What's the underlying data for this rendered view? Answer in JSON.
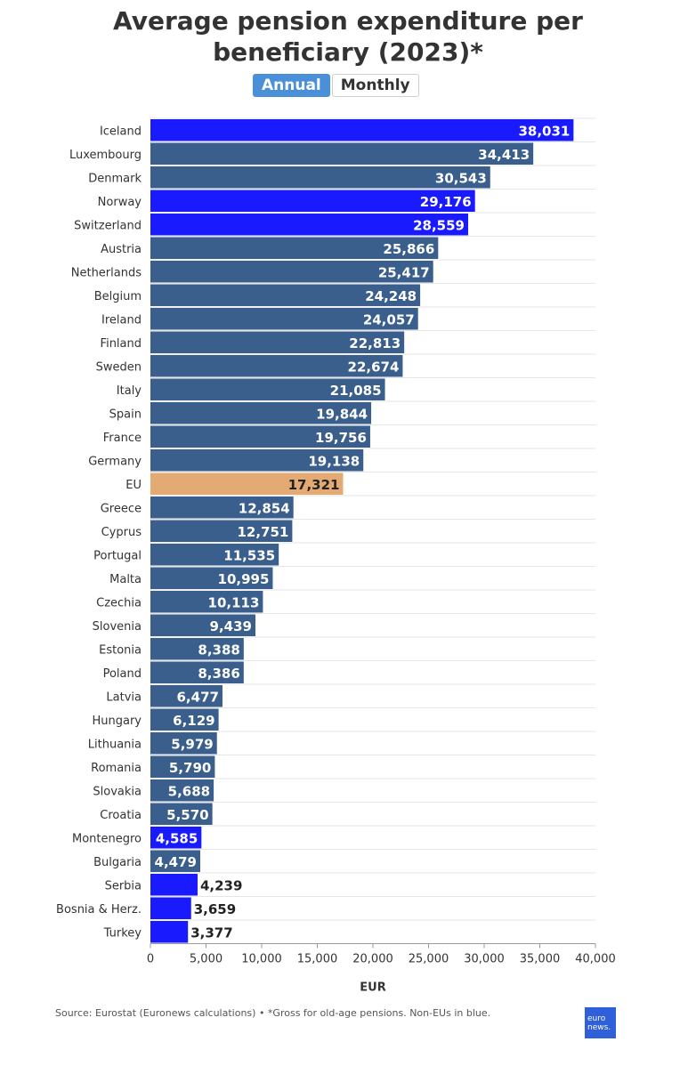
{
  "header": {
    "title_line1": "Average pension expenditure per",
    "title_line2": "beneficiary (2023)*"
  },
  "toggle": {
    "options": [
      "Annual",
      "Monthly"
    ],
    "selected": "Annual"
  },
  "colors": {
    "eu_member": "#3a5f8c",
    "non_eu": "#1a1aff",
    "eu_average": "#e3ab73",
    "grid": "#e6e6e6"
  },
  "chart_data": {
    "type": "bar",
    "orientation": "horizontal",
    "xlabel": "EUR",
    "xlim": [
      0,
      40000
    ],
    "xticks": [
      0,
      5000,
      10000,
      15000,
      20000,
      25000,
      30000,
      35000,
      40000
    ],
    "xtick_labels": [
      "0",
      "5,000",
      "10,000",
      "15,000",
      "20,000",
      "25,000",
      "30,000",
      "35,000",
      "40,000"
    ],
    "grid": true,
    "categories": [
      "Iceland",
      "Luxembourg",
      "Denmark",
      "Norway",
      "Switzerland",
      "Austria",
      "Netherlands",
      "Belgium",
      "Ireland",
      "Finland",
      "Sweden",
      "Italy",
      "Spain",
      "France",
      "Germany",
      "EU",
      "Greece",
      "Cyprus",
      "Portugal",
      "Malta",
      "Czechia",
      "Slovenia",
      "Estonia",
      "Poland",
      "Latvia",
      "Hungary",
      "Lithuania",
      "Romania",
      "Slovakia",
      "Croatia",
      "Montenegro",
      "Bulgaria",
      "Serbia",
      "Bosnia & Herz.",
      "Turkey"
    ],
    "values": [
      38031,
      34413,
      30543,
      29176,
      28559,
      25866,
      25417,
      24248,
      24057,
      22813,
      22674,
      21085,
      19844,
      19756,
      19138,
      17321,
      12854,
      12751,
      11535,
      10995,
      10113,
      9439,
      8388,
      8386,
      6477,
      6129,
      5979,
      5790,
      5688,
      5570,
      4585,
      4479,
      4239,
      3659,
      3377
    ],
    "value_labels": [
      "38,031",
      "34,413",
      "30,543",
      "29,176",
      "28,559",
      "25,866",
      "25,417",
      "24,248",
      "24,057",
      "22,813",
      "22,674",
      "21,085",
      "19,844",
      "19,756",
      "19,138",
      "17,321",
      "12,854",
      "12,751",
      "11,535",
      "10,995",
      "10,113",
      "9,439",
      "8,388",
      "8,386",
      "6,477",
      "6,129",
      "5,979",
      "5,790",
      "5,688",
      "5,570",
      "4,585",
      "4,479",
      "4,239",
      "3,659",
      "3,377"
    ],
    "groups": [
      "non-eu",
      "eu",
      "eu",
      "non-eu",
      "non-eu",
      "eu",
      "eu",
      "eu",
      "eu",
      "eu",
      "eu",
      "eu",
      "eu",
      "eu",
      "eu",
      "eu-average",
      "eu",
      "eu",
      "eu",
      "eu",
      "eu",
      "eu",
      "eu",
      "eu",
      "eu",
      "eu",
      "eu",
      "eu",
      "eu",
      "eu",
      "non-eu",
      "eu",
      "non-eu",
      "non-eu",
      "non-eu"
    ]
  },
  "footer": {
    "source": "Source: Eurostat (Euronews calculations) • *Gross for old-age pensions. Non-EUs in blue.",
    "logo_line1": "euro",
    "logo_line2": "news."
  }
}
